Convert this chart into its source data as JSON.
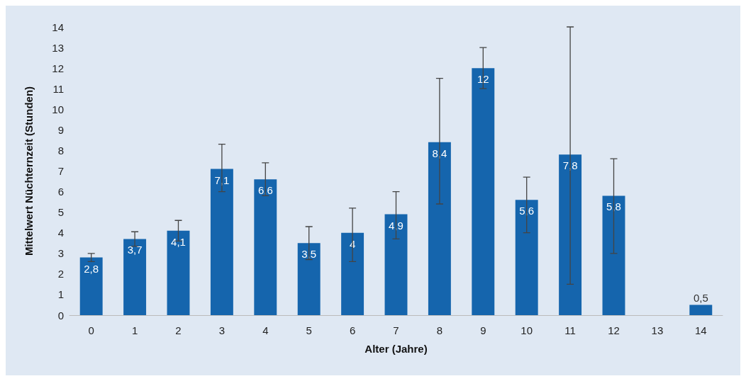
{
  "chart_data": {
    "type": "bar",
    "xlabel": "Alter (Jahre)",
    "ylabel": "Mittelwert Nüchternzeit (Stunden)",
    "categories": [
      "0",
      "1",
      "2",
      "3",
      "4",
      "5",
      "6",
      "7",
      "8",
      "9",
      "10",
      "11",
      "12",
      "13",
      "14"
    ],
    "values": [
      2.8,
      3.7,
      4.1,
      7.1,
      6.6,
      3.5,
      4,
      4.9,
      8.4,
      12,
      5.6,
      7.8,
      5.8,
      null,
      0.5
    ],
    "value_labels": [
      "2,8",
      "3,7",
      "4,1",
      "7,1",
      "6,6",
      "3,5",
      "4",
      "4,9",
      "8,4",
      "12",
      "5,6",
      "7,8",
      "5,8",
      null,
      "0,5"
    ],
    "errors": [
      [
        2.6,
        3.0
      ],
      [
        3.35,
        4.05
      ],
      [
        3.6,
        4.6
      ],
      [
        6.0,
        8.3
      ],
      [
        5.8,
        7.4
      ],
      [
        2.7,
        4.3
      ],
      [
        2.6,
        5.2
      ],
      [
        3.7,
        6.0
      ],
      [
        5.4,
        11.5
      ],
      [
        11.0,
        13.0
      ],
      [
        4.0,
        6.7
      ],
      [
        1.5,
        14.0
      ],
      [
        3.0,
        7.6
      ],
      null,
      null
    ],
    "color": "#1565ad",
    "ylim": [
      0,
      14
    ],
    "yticks": [
      0,
      1,
      2,
      3,
      4,
      5,
      6,
      7,
      8,
      9,
      10,
      11,
      12,
      13,
      14
    ],
    "grid": false
  }
}
